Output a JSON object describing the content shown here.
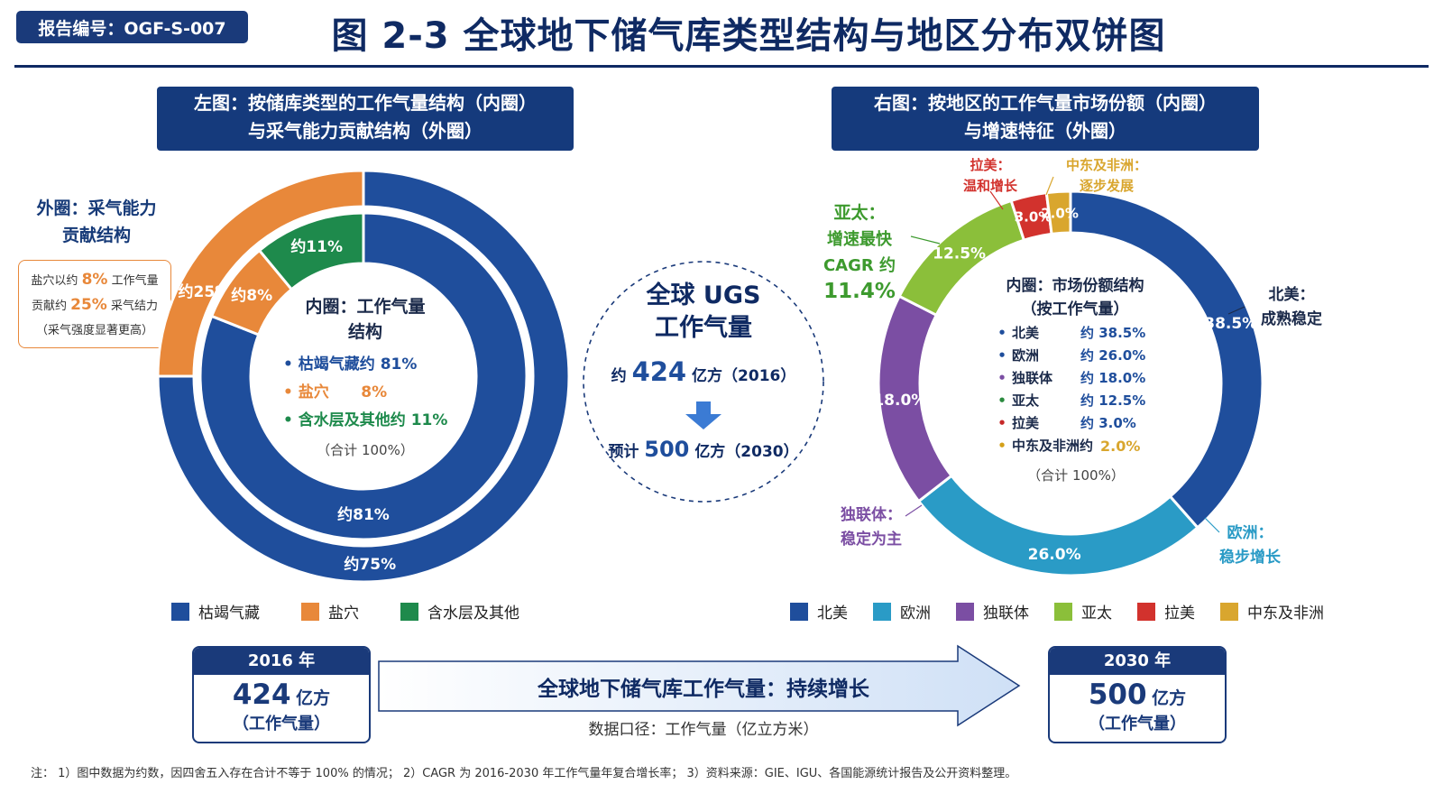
{
  "header": {
    "report_no": "报告编号：OGF-S-007",
    "title": "图 2-3  全球地下储气库类型结构与地区分布双饼图"
  },
  "left_panel": {
    "title_line1": "左图：按储库类型的工作气量结构（内圈）",
    "title_line2": "与采气能力贡献结构（外圈）",
    "outer_label_line1": "外圈：采气能力",
    "outer_label_line2": "贡献结构",
    "callout_line1_a": "盐穴以约",
    "callout_line1_b": "8%",
    "callout_line1_c": "工作气量",
    "callout_line2_a": "贡献约",
    "callout_line2_b": "25%",
    "callout_line2_c": "采气结力",
    "callout_line3": "（采气强度显著更高）",
    "center_title_line1": "内圈：工作气量",
    "center_title_line2": "结构",
    "center_item1": "• 枯竭气藏约 81%",
    "center_item2": "• 盐穴      8%",
    "center_item3": "• 含水层及其他约 11%",
    "center_total": "（合计 100%）"
  },
  "middle": {
    "line1": "全球 UGS",
    "line2": "工作气量",
    "v2016_prefix": "约",
    "v2016_value": "424",
    "v2016_suffix": "亿方（2016）",
    "v2030_prefix": "预计",
    "v2030_value": "500",
    "v2030_suffix": "亿方（2030）"
  },
  "right_panel": {
    "title_line1": "右图：按地区的工作气量市场份额（内圈）",
    "title_line2": "与增速特征（外圈）",
    "center_title_line1": "内圈：市场份额结构",
    "center_title_line2": "（按工作气量）",
    "center_total": "（合计 100%）",
    "center_rows": [
      {
        "name": "北美",
        "value": "约 38.5%",
        "color": "#1f4e9c"
      },
      {
        "name": "欧洲",
        "value": "约 26.0%",
        "color": "#1f4e9c"
      },
      {
        "name": "独联体",
        "value": "约 18.0%",
        "color": "#7b4ea3"
      },
      {
        "name": "亚太",
        "value": "约 12.5%",
        "color": "#2a8a3e"
      },
      {
        "name": "拉美",
        "value": "约 3.0%",
        "color": "#c62828"
      },
      {
        "name": "中东及非洲约",
        "value": "2.0%",
        "color": "#d4a019"
      }
    ],
    "ann_lamei_1": "拉美：",
    "ann_lamei_2": "温和增长",
    "ann_mena_1": "中东及非洲：",
    "ann_mena_2": "逐步发展",
    "ann_ap_1": "亚太：",
    "ann_ap_2": "增速最快",
    "ann_ap_3": "CAGR 约",
    "ann_ap_4": "11.4%",
    "ann_na_1": "北美：",
    "ann_na_2": "成熟稳定",
    "ann_cis_1": "独联体：",
    "ann_cis_2": "稳定为主",
    "ann_eu_1": "欧洲：",
    "ann_eu_2": "稳步增长"
  },
  "chart_data": [
    {
      "type": "pie",
      "title": "左图：按储库类型的工作气量结构（内圈）与采气能力贡献结构（外圈）",
      "rings": [
        {
          "name": "内圈：工作气量结构",
          "categories": [
            "枯竭气藏",
            "盐穴",
            "含水层及其他"
          ],
          "values": [
            81,
            8,
            11
          ],
          "labels": [
            "约81%",
            "约8%",
            "约11%"
          ]
        },
        {
          "name": "外圈：采气能力贡献结构",
          "categories": [
            "枯竭气藏",
            "盐穴"
          ],
          "values": [
            75,
            25
          ],
          "labels": [
            "约75%",
            "约25%"
          ]
        }
      ],
      "colors": [
        "#1f4e9c",
        "#e8883a",
        "#1e8a4c"
      ],
      "legend": [
        "枯竭气藏",
        "盐穴",
        "含水层及其他"
      ],
      "legend_position": "bottom"
    },
    {
      "type": "pie",
      "title": "右图：按地区的工作气量市场份额（内圈）与增速特征（外圈）",
      "categories": [
        "北美",
        "欧洲",
        "独联体",
        "亚太",
        "拉美",
        "中东及非洲"
      ],
      "values": [
        38.5,
        26.0,
        18.0,
        12.5,
        3.0,
        2.0
      ],
      "labels": [
        "38.5%",
        "26.0%",
        "18.0%",
        "12.5%",
        "3.0%",
        "2.0%"
      ],
      "colors": [
        "#1f4e9c",
        "#2a9bc6",
        "#7b4ea3",
        "#8bbf3a",
        "#d2322d",
        "#d9a62e"
      ],
      "legend": [
        "北美",
        "欧洲",
        "独联体",
        "亚太",
        "拉美",
        "中东及非洲"
      ],
      "legend_position": "bottom"
    }
  ],
  "bottom": {
    "y2016_head": "2016 年",
    "y2016_value": "424",
    "y2016_unit": "亿方",
    "y2016_sub": "（工作气量）",
    "y2030_head": "2030 年",
    "y2030_value": "500",
    "y2030_unit": "亿方",
    "y2030_sub": "（工作气量）",
    "arrow_text": "全球地下储气库工作气量：持续增长",
    "arrow_sub": "数据口径：工作气量（亿立方米）"
  },
  "footnote": "注：  1）图中数据为约数，因四舍五入存在合计不等于 100% 的情况；  2）CAGR 为 2016-2030 年工作气量年复合增长率；  3）资料来源：GIE、IGU、各国能源统计报告及公开资料整理。"
}
